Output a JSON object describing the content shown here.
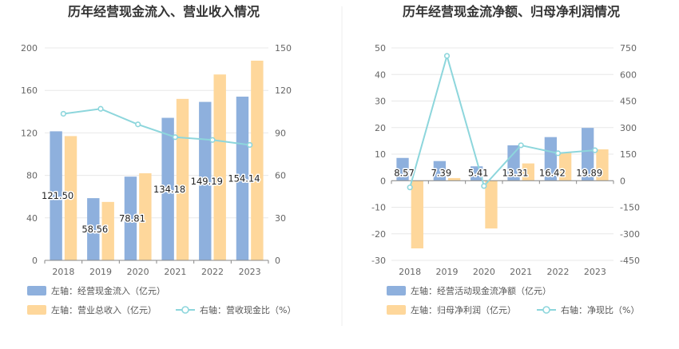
{
  "colors": {
    "bar_primary": "#8eb0dd",
    "bar_secondary": "#fed79b",
    "line": "#8dd6dc",
    "grid": "#e8e8e8",
    "axis": "#cccccc",
    "divider": "#ececec"
  },
  "chart_data": [
    {
      "type": "bar",
      "title": "历年经营现金流入、营业收入情况",
      "categories": [
        "2018",
        "2019",
        "2020",
        "2021",
        "2022",
        "2023"
      ],
      "left_axis": {
        "ticks": [
          "0",
          "40",
          "80",
          "120",
          "160",
          "200"
        ],
        "ylim": [
          0,
          200
        ]
      },
      "right_axis": {
        "ticks": [
          "0",
          "30",
          "60",
          "90",
          "120",
          "150"
        ],
        "ylim": [
          0,
          150
        ]
      },
      "series": [
        {
          "name": "经营现金流入(亿元)",
          "axis": "left",
          "type": "bar",
          "values": [
            121.5,
            58.56,
            78.81,
            134.18,
            149.19,
            154.14
          ]
        },
        {
          "name": "营业总收入(亿元)",
          "axis": "left",
          "type": "bar",
          "values": [
            117,
            55,
            82,
            152,
            175,
            188
          ]
        },
        {
          "name": "营收现金比(%)",
          "axis": "right",
          "type": "line",
          "values": [
            103.5,
            107,
            96,
            87,
            85,
            81.5
          ]
        }
      ],
      "data_labels": [
        "121.50",
        "58.56",
        "78.81",
        "134.18",
        "149.19",
        "154.14"
      ],
      "legend": [
        {
          "text": "左轴：经营现金流入（亿元）",
          "kind": "bar",
          "color": "#8eb0dd"
        },
        {
          "text": "左轴：营业总收入（亿元）",
          "kind": "bar",
          "color": "#fed79b"
        },
        {
          "text": "右轴：营收现金比（%）",
          "kind": "line",
          "color": "#8dd6dc"
        }
      ]
    },
    {
      "type": "bar",
      "title": "历年经营现金流净额、归母净利润情况",
      "categories": [
        "2018",
        "2019",
        "2020",
        "2021",
        "2022",
        "2023"
      ],
      "left_axis": {
        "ticks": [
          "-30",
          "-20",
          "-10",
          "0",
          "10",
          "20",
          "30",
          "40",
          "50"
        ],
        "ylim": [
          -30,
          50
        ]
      },
      "right_axis": {
        "ticks": [
          "-450",
          "-300",
          "-150",
          "0",
          "150",
          "300",
          "450",
          "600",
          "750"
        ],
        "ylim": [
          -450,
          750
        ]
      },
      "series": [
        {
          "name": "经营活动现金流净额(亿元)",
          "axis": "left",
          "type": "bar",
          "values": [
            8.57,
            7.39,
            5.41,
            13.31,
            16.42,
            19.89
          ]
        },
        {
          "name": "归母净利润(亿元)",
          "axis": "left",
          "type": "bar",
          "values": [
            -25.5,
            1.0,
            -18,
            6.5,
            10.5,
            11.8
          ]
        },
        {
          "name": "净现比(%)",
          "axis": "right",
          "type": "line",
          "values": [
            -38,
            705,
            -30,
            200,
            155,
            172
          ]
        }
      ],
      "data_labels": [
        "8.57",
        "7.39",
        "5.41",
        "13.31",
        "16.42",
        "19.89"
      ],
      "legend": [
        {
          "text": "左轴：经营活动现金流净额（亿元）",
          "kind": "bar",
          "color": "#8eb0dd"
        },
        {
          "text": "左轴：归母净利润（亿元）",
          "kind": "bar",
          "color": "#fed79b"
        },
        {
          "text": "右轴：净现比（%）",
          "kind": "line",
          "color": "#8dd6dc"
        }
      ]
    }
  ]
}
